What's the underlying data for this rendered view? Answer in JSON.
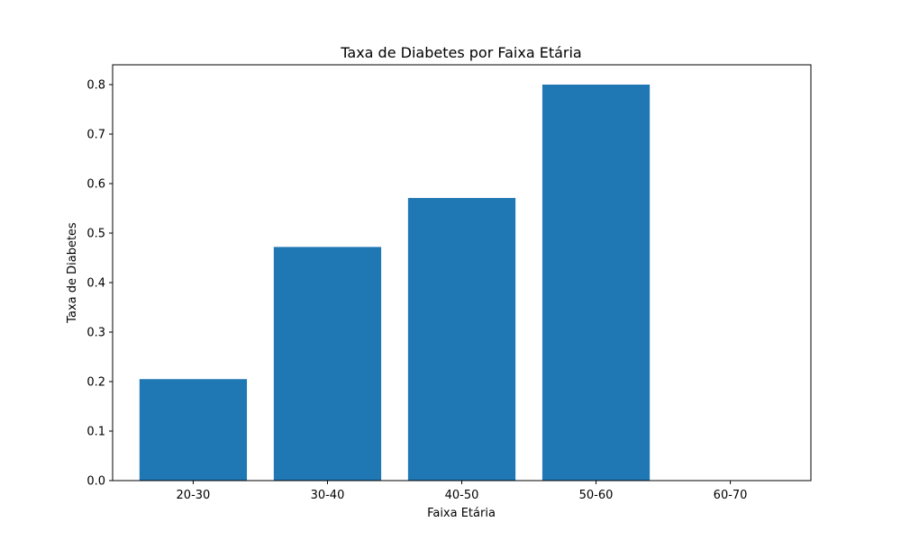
{
  "chart_data": {
    "type": "bar",
    "title": "Taxa de Diabetes por Faixa Etária",
    "xlabel": "Faixa Etária",
    "ylabel": "Taxa de Diabetes",
    "categories": [
      "20-30",
      "30-40",
      "40-50",
      "50-60",
      "60-70"
    ],
    "values": [
      0.205,
      0.472,
      0.571,
      0.8,
      0.0
    ],
    "ylim": [
      0,
      0.84
    ],
    "yticks": [
      "0.0",
      "0.1",
      "0.2",
      "0.3",
      "0.4",
      "0.5",
      "0.6",
      "0.7",
      "0.8"
    ],
    "bar_color": "#1f77b4",
    "grid": false,
    "legend": false
  }
}
